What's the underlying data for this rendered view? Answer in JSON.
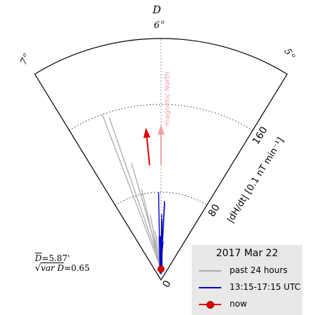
{
  "chart_data": {
    "type": "polar-sector",
    "title_axis": "D",
    "angle_ticks": [
      {
        "label": "6",
        "sup": "o",
        "angle": 6
      },
      {
        "label": "7",
        "sup": "o",
        "angle": 7
      },
      {
        "label": "5",
        "sup": "o",
        "angle": 5
      }
    ],
    "radial_label": "|dH/dt| [0.1 nT min⁻¹]",
    "radial_ticks": [
      {
        "label": "0",
        "value": 0
      },
      {
        "label": "80",
        "value": 80
      },
      {
        "label": "160",
        "value": 160
      }
    ],
    "radial_max": 220,
    "angle_range": [
      5,
      7
    ],
    "magnetic_north_label": "magnetic North",
    "magnetic_north_angle": 6.0,
    "stats": {
      "mean_d": "5.87'",
      "var_d": "=0.65",
      "mean_d_symbol": "D",
      "var_d_symbol": "var D"
    },
    "legend": {
      "title": "2017 Mar 22",
      "items": [
        {
          "label": "past 24 hours",
          "color": "#aaaaaa"
        },
        {
          "label": "13:15-17:15 UTC",
          "color": "#0000cc"
        },
        {
          "label": "now",
          "color": "#e00000"
        }
      ]
    },
    "series": [
      {
        "name": "past 24 hours",
        "color": "#aaaaaa",
        "points": [
          {
            "angle": 6.62,
            "r": 160
          },
          {
            "angle": 6.56,
            "r": 155
          },
          {
            "angle": 6.45,
            "r": 110
          },
          {
            "angle": 6.38,
            "r": 85
          },
          {
            "angle": 6.3,
            "r": 60
          },
          {
            "angle": 6.22,
            "r": 45
          },
          {
            "angle": 5.98,
            "r": 50
          },
          {
            "angle": 5.9,
            "r": 70
          },
          {
            "angle": 6.12,
            "r": 40
          },
          {
            "angle": 6.05,
            "r": 30
          }
        ]
      },
      {
        "name": "13:15-17:15 UTC",
        "color": "#0000cc",
        "points": [
          {
            "angle": 6.05,
            "r": 80
          },
          {
            "angle": 5.92,
            "r": 72
          },
          {
            "angle": 5.97,
            "r": 55
          },
          {
            "angle": 6.02,
            "r": 40
          },
          {
            "angle": 5.95,
            "r": 30
          },
          {
            "angle": 6.0,
            "r": 25
          },
          {
            "angle": 5.9,
            "r": 35
          },
          {
            "angle": 5.96,
            "r": 20
          },
          {
            "angle": 6.03,
            "r": 18
          },
          {
            "angle": 5.93,
            "r": 45
          },
          {
            "angle": 5.98,
            "r": 60
          }
        ]
      }
    ],
    "mean_arrow": {
      "angle": 6.18,
      "r_start": 105,
      "r_end": 138,
      "color": "#e00000"
    },
    "north_arrow": {
      "angle": 6.0,
      "r_start": 105,
      "r_end": 140,
      "color": "#f4a0a8"
    },
    "now_point": {
      "angle": 6.0,
      "r": 10,
      "color": "#e00000"
    }
  }
}
